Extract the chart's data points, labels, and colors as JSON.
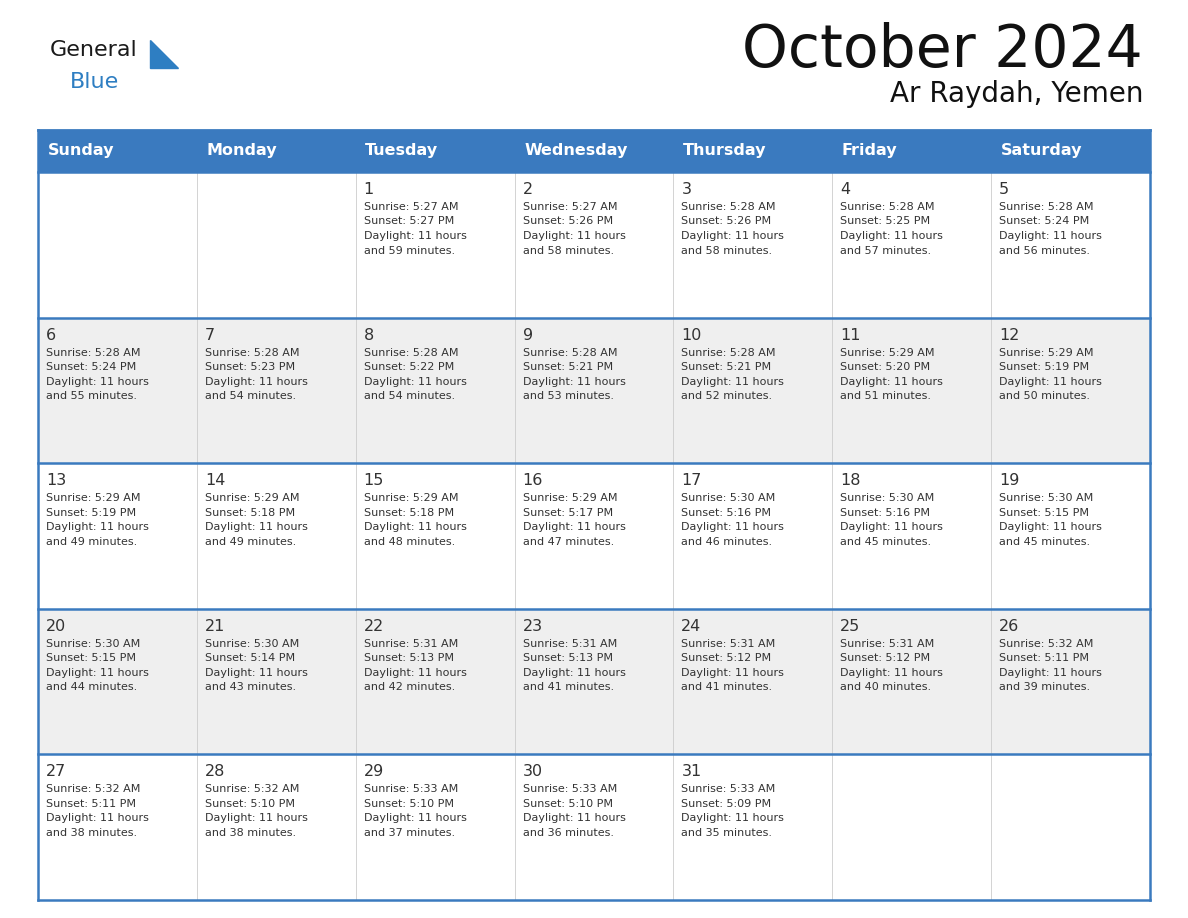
{
  "title": "October 2024",
  "subtitle": "Ar Raydah, Yemen",
  "days_of_week": [
    "Sunday",
    "Monday",
    "Tuesday",
    "Wednesday",
    "Thursday",
    "Friday",
    "Saturday"
  ],
  "header_bg": "#3a7abf",
  "header_text_color": "#ffffff",
  "row_bg_odd": "#ffffff",
  "row_bg_even": "#efefef",
  "cell_border_color": "#3a7abf",
  "text_color": "#333333",
  "logo_black": "#1a1a1a",
  "logo_blue": "#2e7ec2",
  "calendar_data": [
    [
      {
        "day": "",
        "sunrise": "",
        "sunset": "",
        "daylight_h": "",
        "daylight_m": ""
      },
      {
        "day": "",
        "sunrise": "",
        "sunset": "",
        "daylight_h": "",
        "daylight_m": ""
      },
      {
        "day": "1",
        "sunrise": "5:27 AM",
        "sunset": "5:27 PM",
        "daylight_h": "11",
        "daylight_m": "59"
      },
      {
        "day": "2",
        "sunrise": "5:27 AM",
        "sunset": "5:26 PM",
        "daylight_h": "11",
        "daylight_m": "58"
      },
      {
        "day": "3",
        "sunrise": "5:28 AM",
        "sunset": "5:26 PM",
        "daylight_h": "11",
        "daylight_m": "58"
      },
      {
        "day": "4",
        "sunrise": "5:28 AM",
        "sunset": "5:25 PM",
        "daylight_h": "11",
        "daylight_m": "57"
      },
      {
        "day": "5",
        "sunrise": "5:28 AM",
        "sunset": "5:24 PM",
        "daylight_h": "11",
        "daylight_m": "56"
      }
    ],
    [
      {
        "day": "6",
        "sunrise": "5:28 AM",
        "sunset": "5:24 PM",
        "daylight_h": "11",
        "daylight_m": "55"
      },
      {
        "day": "7",
        "sunrise": "5:28 AM",
        "sunset": "5:23 PM",
        "daylight_h": "11",
        "daylight_m": "54"
      },
      {
        "day": "8",
        "sunrise": "5:28 AM",
        "sunset": "5:22 PM",
        "daylight_h": "11",
        "daylight_m": "54"
      },
      {
        "day": "9",
        "sunrise": "5:28 AM",
        "sunset": "5:21 PM",
        "daylight_h": "11",
        "daylight_m": "53"
      },
      {
        "day": "10",
        "sunrise": "5:28 AM",
        "sunset": "5:21 PM",
        "daylight_h": "11",
        "daylight_m": "52"
      },
      {
        "day": "11",
        "sunrise": "5:29 AM",
        "sunset": "5:20 PM",
        "daylight_h": "11",
        "daylight_m": "51"
      },
      {
        "day": "12",
        "sunrise": "5:29 AM",
        "sunset": "5:19 PM",
        "daylight_h": "11",
        "daylight_m": "50"
      }
    ],
    [
      {
        "day": "13",
        "sunrise": "5:29 AM",
        "sunset": "5:19 PM",
        "daylight_h": "11",
        "daylight_m": "49"
      },
      {
        "day": "14",
        "sunrise": "5:29 AM",
        "sunset": "5:18 PM",
        "daylight_h": "11",
        "daylight_m": "49"
      },
      {
        "day": "15",
        "sunrise": "5:29 AM",
        "sunset": "5:18 PM",
        "daylight_h": "11",
        "daylight_m": "48"
      },
      {
        "day": "16",
        "sunrise": "5:29 AM",
        "sunset": "5:17 PM",
        "daylight_h": "11",
        "daylight_m": "47"
      },
      {
        "day": "17",
        "sunrise": "5:30 AM",
        "sunset": "5:16 PM",
        "daylight_h": "11",
        "daylight_m": "46"
      },
      {
        "day": "18",
        "sunrise": "5:30 AM",
        "sunset": "5:16 PM",
        "daylight_h": "11",
        "daylight_m": "45"
      },
      {
        "day": "19",
        "sunrise": "5:30 AM",
        "sunset": "5:15 PM",
        "daylight_h": "11",
        "daylight_m": "45"
      }
    ],
    [
      {
        "day": "20",
        "sunrise": "5:30 AM",
        "sunset": "5:15 PM",
        "daylight_h": "11",
        "daylight_m": "44"
      },
      {
        "day": "21",
        "sunrise": "5:30 AM",
        "sunset": "5:14 PM",
        "daylight_h": "11",
        "daylight_m": "43"
      },
      {
        "day": "22",
        "sunrise": "5:31 AM",
        "sunset": "5:13 PM",
        "daylight_h": "11",
        "daylight_m": "42"
      },
      {
        "day": "23",
        "sunrise": "5:31 AM",
        "sunset": "5:13 PM",
        "daylight_h": "11",
        "daylight_m": "41"
      },
      {
        "day": "24",
        "sunrise": "5:31 AM",
        "sunset": "5:12 PM",
        "daylight_h": "11",
        "daylight_m": "41"
      },
      {
        "day": "25",
        "sunrise": "5:31 AM",
        "sunset": "5:12 PM",
        "daylight_h": "11",
        "daylight_m": "40"
      },
      {
        "day": "26",
        "sunrise": "5:32 AM",
        "sunset": "5:11 PM",
        "daylight_h": "11",
        "daylight_m": "39"
      }
    ],
    [
      {
        "day": "27",
        "sunrise": "5:32 AM",
        "sunset": "5:11 PM",
        "daylight_h": "11",
        "daylight_m": "38"
      },
      {
        "day": "28",
        "sunrise": "5:32 AM",
        "sunset": "5:10 PM",
        "daylight_h": "11",
        "daylight_m": "38"
      },
      {
        "day": "29",
        "sunrise": "5:33 AM",
        "sunset": "5:10 PM",
        "daylight_h": "11",
        "daylight_m": "37"
      },
      {
        "day": "30",
        "sunrise": "5:33 AM",
        "sunset": "5:10 PM",
        "daylight_h": "11",
        "daylight_m": "36"
      },
      {
        "day": "31",
        "sunrise": "5:33 AM",
        "sunset": "5:09 PM",
        "daylight_h": "11",
        "daylight_m": "35"
      },
      {
        "day": "",
        "sunrise": "",
        "sunset": "",
        "daylight_h": "",
        "daylight_m": ""
      },
      {
        "day": "",
        "sunrise": "",
        "sunset": "",
        "daylight_h": "",
        "daylight_m": ""
      }
    ]
  ]
}
